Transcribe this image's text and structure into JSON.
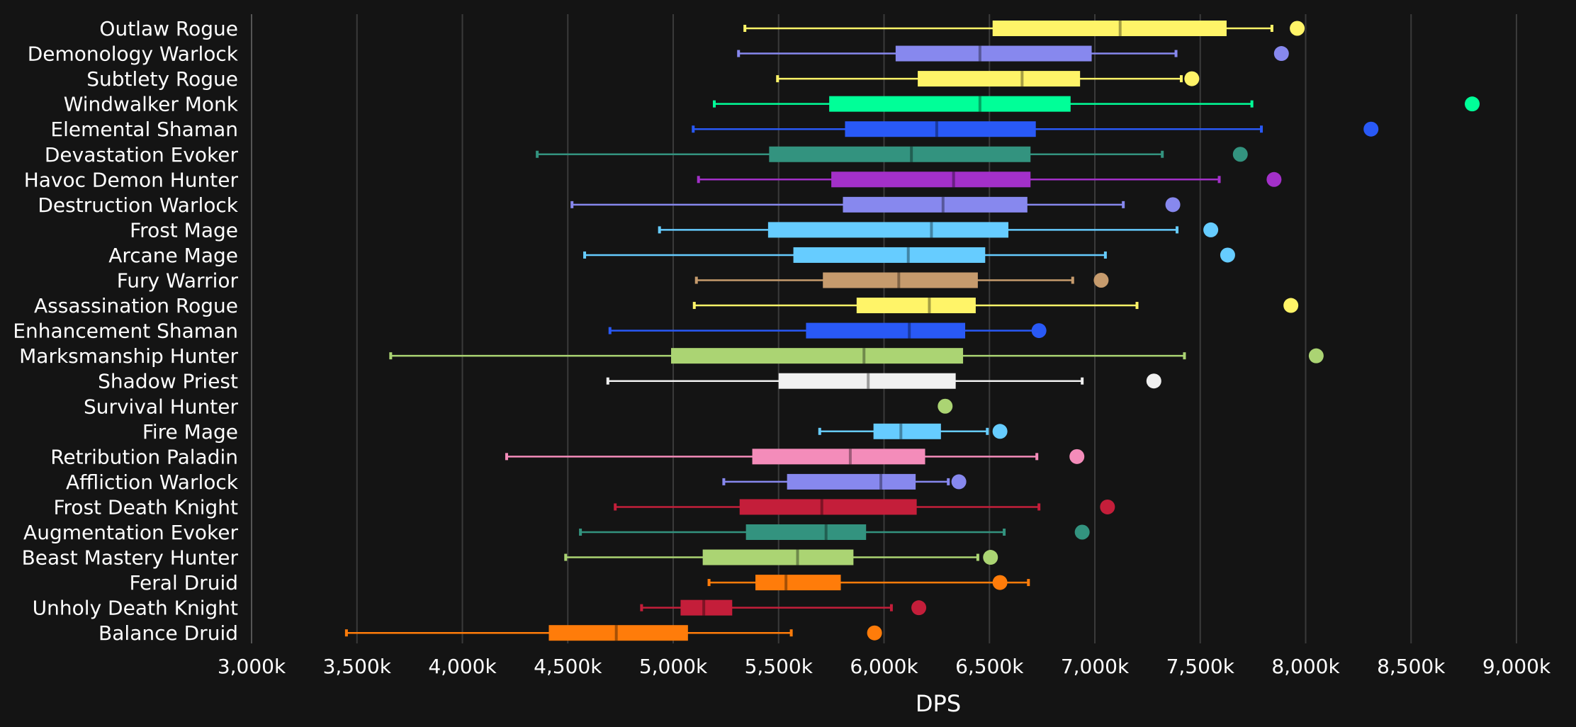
{
  "chart_data": {
    "type": "boxplot",
    "title": "",
    "xlabel": "DPS",
    "ylabel": "",
    "xlim": [
      3000,
      9000
    ],
    "tick_values": [
      3000,
      3500,
      4000,
      4500,
      5000,
      5500,
      6000,
      6500,
      7000,
      7500,
      8000,
      8500,
      9000
    ],
    "tick_labels": [
      "3,000k",
      "3,500k",
      "4,000k",
      "4,500k",
      "5,000k",
      "5,500k",
      "6,000k",
      "6,500k",
      "7,000k",
      "7,500k",
      "8,000k",
      "8,500k",
      "9,000k"
    ],
    "grid": true,
    "unit": "k",
    "series": [
      {
        "name": "Outlaw Rogue",
        "color": "#fff468",
        "min": 5340,
        "q1": 6515,
        "median": 7120,
        "q3": 7625,
        "max": 7840,
        "max_point": 7960
      },
      {
        "name": "Demonology Warlock",
        "color": "#8788ee",
        "min": 5310,
        "q1": 6055,
        "median": 6455,
        "q3": 6985,
        "max": 7385,
        "max_point": 7885
      },
      {
        "name": "Subtlety Rogue",
        "color": "#fff468",
        "min": 5495,
        "q1": 6160,
        "median": 6655,
        "q3": 6930,
        "max": 7410,
        "max_point": 7460
      },
      {
        "name": "Windwalker Monk",
        "color": "#00ff98",
        "min": 5195,
        "q1": 5740,
        "median": 6455,
        "q3": 6885,
        "max": 7745,
        "max_point": 8790
      },
      {
        "name": "Elemental Shaman",
        "color": "#2959f6",
        "min": 5095,
        "q1": 5815,
        "median": 6250,
        "q3": 6720,
        "max": 7790,
        "max_point": 8310
      },
      {
        "name": "Devastation Evoker",
        "color": "#33937f",
        "min": 4355,
        "q1": 5455,
        "median": 6130,
        "q3": 6695,
        "max": 7320,
        "max_point": 7690
      },
      {
        "name": "Havoc Demon Hunter",
        "color": "#a330c9",
        "min": 5120,
        "q1": 5750,
        "median": 6330,
        "q3": 6695,
        "max": 7590,
        "max_point": 7850
      },
      {
        "name": "Destruction Warlock",
        "color": "#8788ee",
        "min": 4520,
        "q1": 5805,
        "median": 6280,
        "q3": 6680,
        "max": 7135,
        "max_point": 7370
      },
      {
        "name": "Frost Mage",
        "color": "#66ccff",
        "min": 4935,
        "q1": 5450,
        "median": 6225,
        "q3": 6590,
        "max": 7390,
        "max_point": 7550
      },
      {
        "name": "Arcane Mage",
        "color": "#66ccff",
        "min": 4580,
        "q1": 5570,
        "median": 6115,
        "q3": 6480,
        "max": 7050,
        "max_point": 7630
      },
      {
        "name": "Fury Warrior",
        "color": "#c69b6d",
        "min": 5110,
        "q1": 5710,
        "median": 6070,
        "q3": 6445,
        "max": 6895,
        "max_point": 7030
      },
      {
        "name": "Assassination Rogue",
        "color": "#fff468",
        "min": 5100,
        "q1": 5870,
        "median": 6215,
        "q3": 6435,
        "max": 7200,
        "max_point": 7930
      },
      {
        "name": "Enhancement Shaman",
        "color": "#2959f6",
        "min": 4700,
        "q1": 5630,
        "median": 6120,
        "q3": 6385,
        "max": 6720,
        "max_point": 6735
      },
      {
        "name": "Marksmanship Hunter",
        "color": "#abd473",
        "min": 3660,
        "q1": 4990,
        "median": 5905,
        "q3": 6375,
        "max": 7425,
        "max_point": 8050
      },
      {
        "name": "Shadow Priest",
        "color": "#f0f0f0",
        "min": 4690,
        "q1": 5500,
        "median": 5925,
        "q3": 6340,
        "max": 6940,
        "max_point": 7280
      },
      {
        "name": "Survival Hunter",
        "color": "#abd473",
        "min": 6290,
        "q1": 6290,
        "median": 6290,
        "q3": 6290,
        "max": 6290,
        "max_point": 6290
      },
      {
        "name": "Fire Mage",
        "color": "#66ccff",
        "min": 5695,
        "q1": 5950,
        "median": 6080,
        "q3": 6270,
        "max": 6490,
        "max_point": 6550
      },
      {
        "name": "Retribution Paladin",
        "color": "#f48cba",
        "min": 4210,
        "q1": 5375,
        "median": 5840,
        "q3": 6195,
        "max": 6725,
        "max_point": 6915
      },
      {
        "name": "Affliction Warlock",
        "color": "#8788ee",
        "min": 5240,
        "q1": 5540,
        "median": 5985,
        "q3": 6150,
        "max": 6305,
        "max_point": 6355
      },
      {
        "name": "Frost Death Knight",
        "color": "#c41e3a",
        "min": 4725,
        "q1": 5315,
        "median": 5705,
        "q3": 6155,
        "max": 6735,
        "max_point": 7060
      },
      {
        "name": "Augmentation Evoker",
        "color": "#33937f",
        "min": 4560,
        "q1": 5345,
        "median": 5725,
        "q3": 5915,
        "max": 6570,
        "max_point": 6940
      },
      {
        "name": "Beast Mastery Hunter",
        "color": "#abd473",
        "min": 4490,
        "q1": 5140,
        "median": 5590,
        "q3": 5855,
        "max": 6445,
        "max_point": 6505
      },
      {
        "name": "Feral Druid",
        "color": "#ff7c0a",
        "min": 5170,
        "q1": 5390,
        "median": 5535,
        "q3": 5795,
        "max": 6685,
        "max_point": 6550
      },
      {
        "name": "Unholy Death Knight",
        "color": "#c41e3a",
        "min": 4850,
        "q1": 5035,
        "median": 5145,
        "q3": 5280,
        "max": 6035,
        "max_point": 6165
      },
      {
        "name": "Balance Druid",
        "color": "#ff7c0a",
        "min": 3450,
        "q1": 4410,
        "median": 4730,
        "q3": 5070,
        "max": 5560,
        "max_point": 5955
      }
    ]
  }
}
